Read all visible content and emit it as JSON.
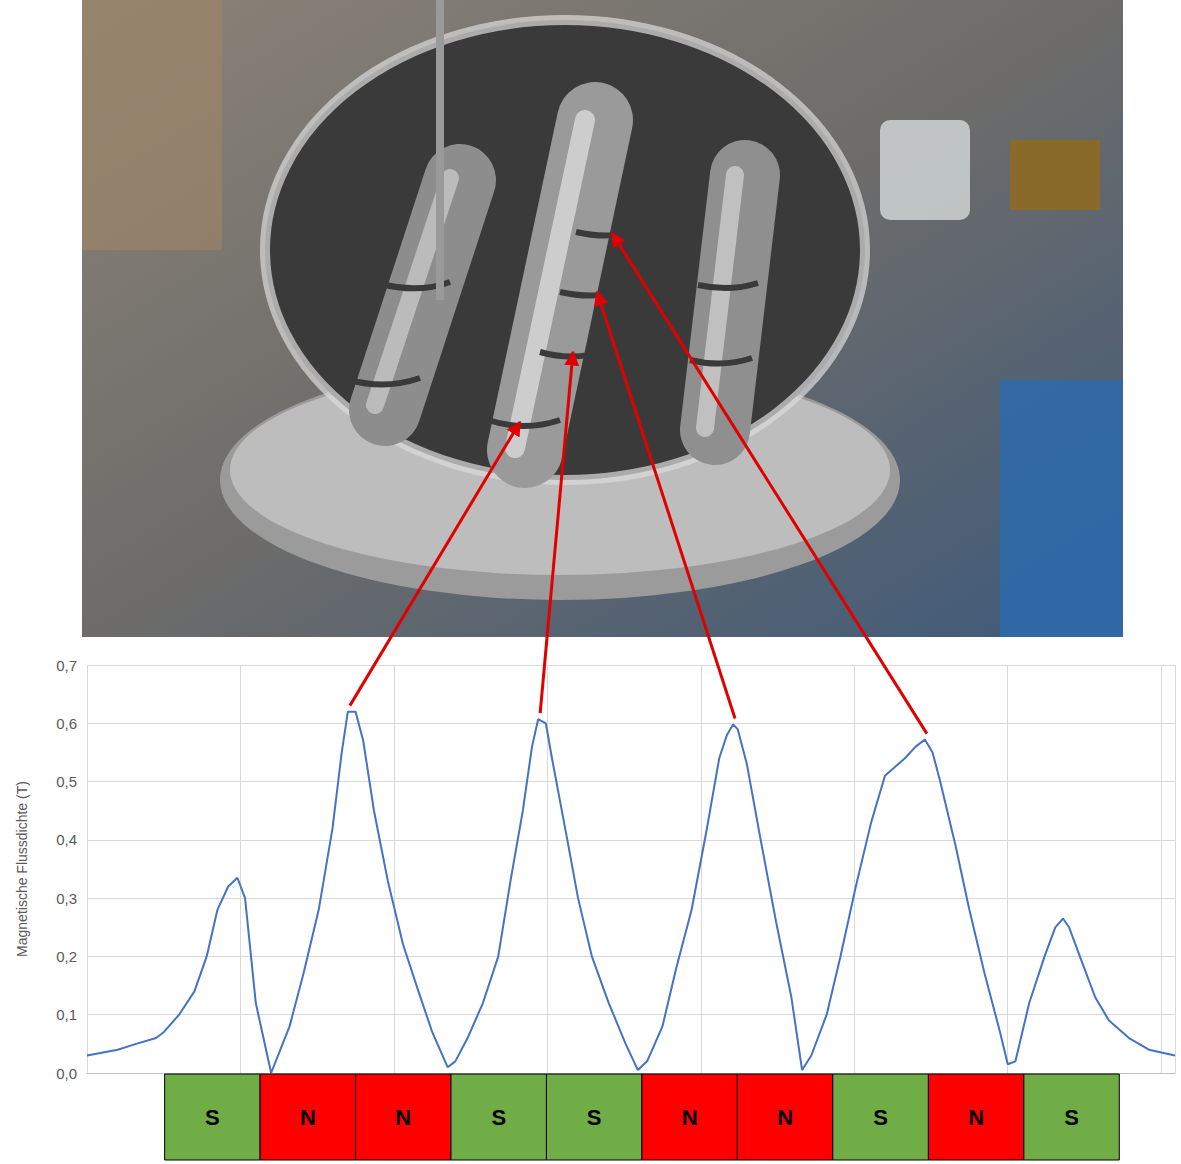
{
  "chart_data": {
    "type": "line",
    "y_label": "Magnetische Flussdichte (T)",
    "x": [
      0,
      0.2,
      0.32,
      0.45,
      0.5,
      0.6,
      0.7,
      0.78,
      0.85,
      0.92,
      0.98,
      1.03,
      1.1,
      1.2,
      1.26,
      1.32,
      1.41,
      1.51,
      1.6,
      1.66,
      1.7,
      1.75,
      1.8,
      1.87,
      1.96,
      2.06,
      2.16,
      2.25,
      2.35,
      2.4,
      2.48,
      2.58,
      2.68,
      2.76,
      2.84,
      2.9,
      2.94,
      2.99,
      3.03,
      3.13,
      3.2,
      3.29,
      3.4,
      3.51,
      3.59,
      3.65,
      3.75,
      3.84,
      3.94,
      4.04,
      4.12,
      4.17,
      4.21,
      4.24,
      4.3,
      4.39,
      4.49,
      4.59,
      4.66,
      4.72,
      4.82,
      4.91,
      5.01,
      5.11,
      5.2,
      5.33,
      5.4,
      5.46,
      5.51,
      5.56,
      5.66,
      5.75,
      5.85,
      5.95,
      6.0,
      6.05,
      6.14,
      6.24,
      6.31,
      6.36,
      6.4,
      6.47,
      6.57,
      6.66,
      6.79,
      6.92,
      7.09
    ],
    "values": [
      0.03,
      0.04,
      0.05,
      0.06,
      0.07,
      0.1,
      0.14,
      0.2,
      0.28,
      0.32,
      0.335,
      0.3,
      0.12,
      0.0,
      0.04,
      0.08,
      0.17,
      0.28,
      0.42,
      0.55,
      0.62,
      0.62,
      0.57,
      0.45,
      0.33,
      0.22,
      0.14,
      0.07,
      0.01,
      0.02,
      0.06,
      0.12,
      0.2,
      0.33,
      0.45,
      0.56,
      0.607,
      0.6,
      0.54,
      0.4,
      0.3,
      0.2,
      0.12,
      0.05,
      0.005,
      0.02,
      0.08,
      0.18,
      0.28,
      0.42,
      0.54,
      0.58,
      0.598,
      0.59,
      0.53,
      0.4,
      0.26,
      0.13,
      0.005,
      0.03,
      0.1,
      0.2,
      0.32,
      0.43,
      0.51,
      0.54,
      0.56,
      0.572,
      0.55,
      0.5,
      0.39,
      0.28,
      0.17,
      0.07,
      0.015,
      0.02,
      0.12,
      0.2,
      0.25,
      0.265,
      0.25,
      0.2,
      0.13,
      0.09,
      0.06,
      0.04,
      0.03
    ],
    "color": "#4472c4",
    "xlim": [
      0,
      7.09
    ],
    "xticks": [
      0,
      1,
      2,
      3,
      4,
      5,
      6,
      7
    ],
    "ylim": [
      0,
      0.7
    ],
    "yticks": [
      {
        "value": 0,
        "label": "0,0"
      },
      {
        "value": 0.1,
        "label": "0,1"
      },
      {
        "value": 0.2,
        "label": "0,2"
      },
      {
        "value": 0.3,
        "label": "0,3"
      },
      {
        "value": 0.4,
        "label": "0,4"
      },
      {
        "value": 0.5,
        "label": "0,5"
      },
      {
        "value": 0.6,
        "label": "0,6"
      },
      {
        "value": 0.7,
        "label": "0,7"
      }
    ],
    "grid": true,
    "tick_labels": "y",
    "magnets": {
      "labels": [
        "S",
        "N",
        "N",
        "S",
        "S",
        "N",
        "N",
        "S",
        "N",
        "S"
      ],
      "colors": [
        "#70ad47",
        "#ff0000",
        "#ff0000",
        "#70ad47",
        "#70ad47",
        "#ff0000",
        "#ff0000",
        "#70ad47",
        "#ff0000",
        "#70ad47"
      ],
      "edges": [
        0.506,
        1.128,
        1.75,
        2.372,
        2.994,
        3.616,
        4.238,
        4.86,
        5.483,
        6.105,
        6.727
      ]
    }
  }
}
